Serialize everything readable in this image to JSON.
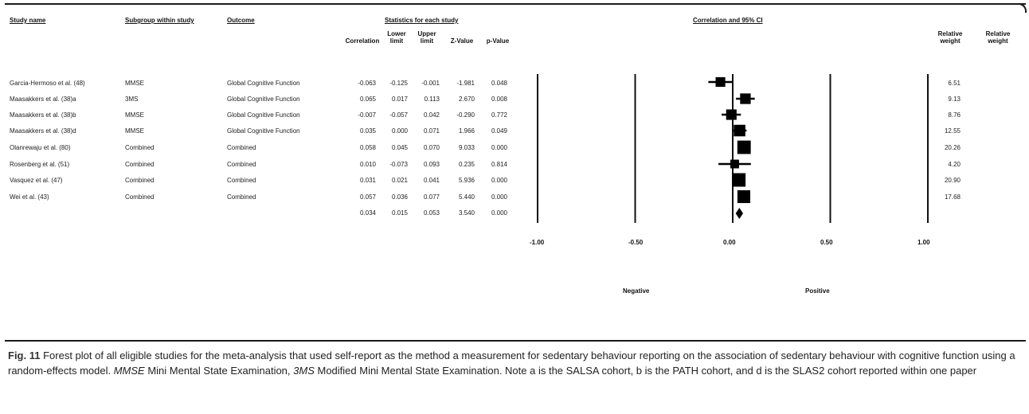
{
  "headers": {
    "study_name": "Study name",
    "subgroup": "Subgroup within study",
    "outcome": "Outcome",
    "statistics": "Statistics for each study",
    "ci": "Correlation and 95% CI",
    "correlation": "Correlation",
    "lower_limit": "Lower limit",
    "upper_limit": "Upper limit",
    "z_value": "Z-Value",
    "p_value": "p-Value",
    "relative_weight_1": "Relative weight",
    "relative_weight_2": "Relative weight"
  },
  "rows": [
    {
      "study": "Garcia-Hermoso et al. (48)",
      "subgroup": "MMSE",
      "outcome": "Global Cognitive Function",
      "corr": "-0.063",
      "lower": "-0.125",
      "upper": "-0.001",
      "z": "-1.981",
      "p": "0.048",
      "weight": "6.51"
    },
    {
      "study": "Maasakkers et al. (38)a",
      "subgroup": "3MS",
      "outcome": "Global Cognitive Function",
      "corr": "0.065",
      "lower": "0.017",
      "upper": "0.113",
      "z": "2.670",
      "p": "0.008",
      "weight": "9.13"
    },
    {
      "study": "Maasakkers et al. (38)b",
      "subgroup": "MMSE",
      "outcome": "Global Cognitive Function",
      "corr": "-0.007",
      "lower": "-0.057",
      "upper": "0.042",
      "z": "-0.290",
      "p": "0.772",
      "weight": "8.76"
    },
    {
      "study": "Maasakkers et al. (38)d",
      "subgroup": "MMSE",
      "outcome": "Global Cognitive Function",
      "corr": "0.035",
      "lower": "0.000",
      "upper": "0.071",
      "z": "1.966",
      "p": "0.049",
      "weight": "12.55"
    },
    {
      "study": "Olanrewaju et al. (80)",
      "subgroup": "Combined",
      "outcome": "Combined",
      "corr": "0.058",
      "lower": "0.045",
      "upper": "0.070",
      "z": "9.033",
      "p": "0.000",
      "weight": "20.26"
    },
    {
      "study": "Rosenberg et al. (51)",
      "subgroup": "Combined",
      "outcome": "Combined",
      "corr": "0.010",
      "lower": "-0.073",
      "upper": "0.093",
      "z": "0.235",
      "p": "0.814",
      "weight": "4.20"
    },
    {
      "study": "Vasquez et al. (47)",
      "subgroup": "Combined",
      "outcome": "Combined",
      "corr": "0.031",
      "lower": "0.021",
      "upper": "0.041",
      "z": "5.936",
      "p": "0.000",
      "weight": "20.90"
    },
    {
      "study": "Wei et al. (43)",
      "subgroup": "Combined",
      "outcome": "Combined",
      "corr": "0.057",
      "lower": "0.036",
      "upper": "0.077",
      "z": "5.440",
      "p": "0.000",
      "weight": "17.68"
    }
  ],
  "summary": {
    "corr": "0.034",
    "lower": "0.015",
    "upper": "0.053",
    "z": "3.540",
    "p": "0.000"
  },
  "axis": {
    "ticks": [
      "-1.00",
      "-0.50",
      "0.00",
      "0.50",
      "1.00"
    ],
    "negative": "Negative",
    "positive": "Positive"
  },
  "chart_data": {
    "type": "forest",
    "xlim": [
      -1.0,
      1.0
    ],
    "x_ticks": [
      -1.0,
      -0.5,
      0.0,
      0.5,
      1.0
    ],
    "studies": [
      {
        "corr": -0.063,
        "lower": -0.125,
        "upper": -0.001,
        "weight": 6.51
      },
      {
        "corr": 0.065,
        "lower": 0.017,
        "upper": 0.113,
        "weight": 9.13
      },
      {
        "corr": -0.007,
        "lower": -0.057,
        "upper": 0.042,
        "weight": 8.76
      },
      {
        "corr": 0.035,
        "lower": 0.0,
        "upper": 0.071,
        "weight": 12.55
      },
      {
        "corr": 0.058,
        "lower": 0.045,
        "upper": 0.07,
        "weight": 20.26
      },
      {
        "corr": 0.01,
        "lower": -0.073,
        "upper": 0.093,
        "weight": 4.2
      },
      {
        "corr": 0.031,
        "lower": 0.021,
        "upper": 0.041,
        "weight": 20.9
      },
      {
        "corr": 0.057,
        "lower": 0.036,
        "upper": 0.077,
        "weight": 17.68
      }
    ],
    "summary": {
      "corr": 0.034,
      "lower": 0.015,
      "upper": 0.053
    }
  },
  "caption": {
    "fig_label": "Fig. 11",
    "text_1": "Forest plot of all eligible studies for the meta-analysis that used self-report as the method a measurement for sedentary behaviour reporting on the association of sedentary behaviour with cognitive function using a random-effects model. ",
    "abbr_1": "MMSE",
    "text_2": " Mini Mental State Examination, ",
    "abbr_2": "3MS",
    "text_3": " Modified Mini Mental State Examination. Note a is the SALSA cohort, b is the PATH cohort, and d is the SLAS2 cohort reported within one paper"
  }
}
